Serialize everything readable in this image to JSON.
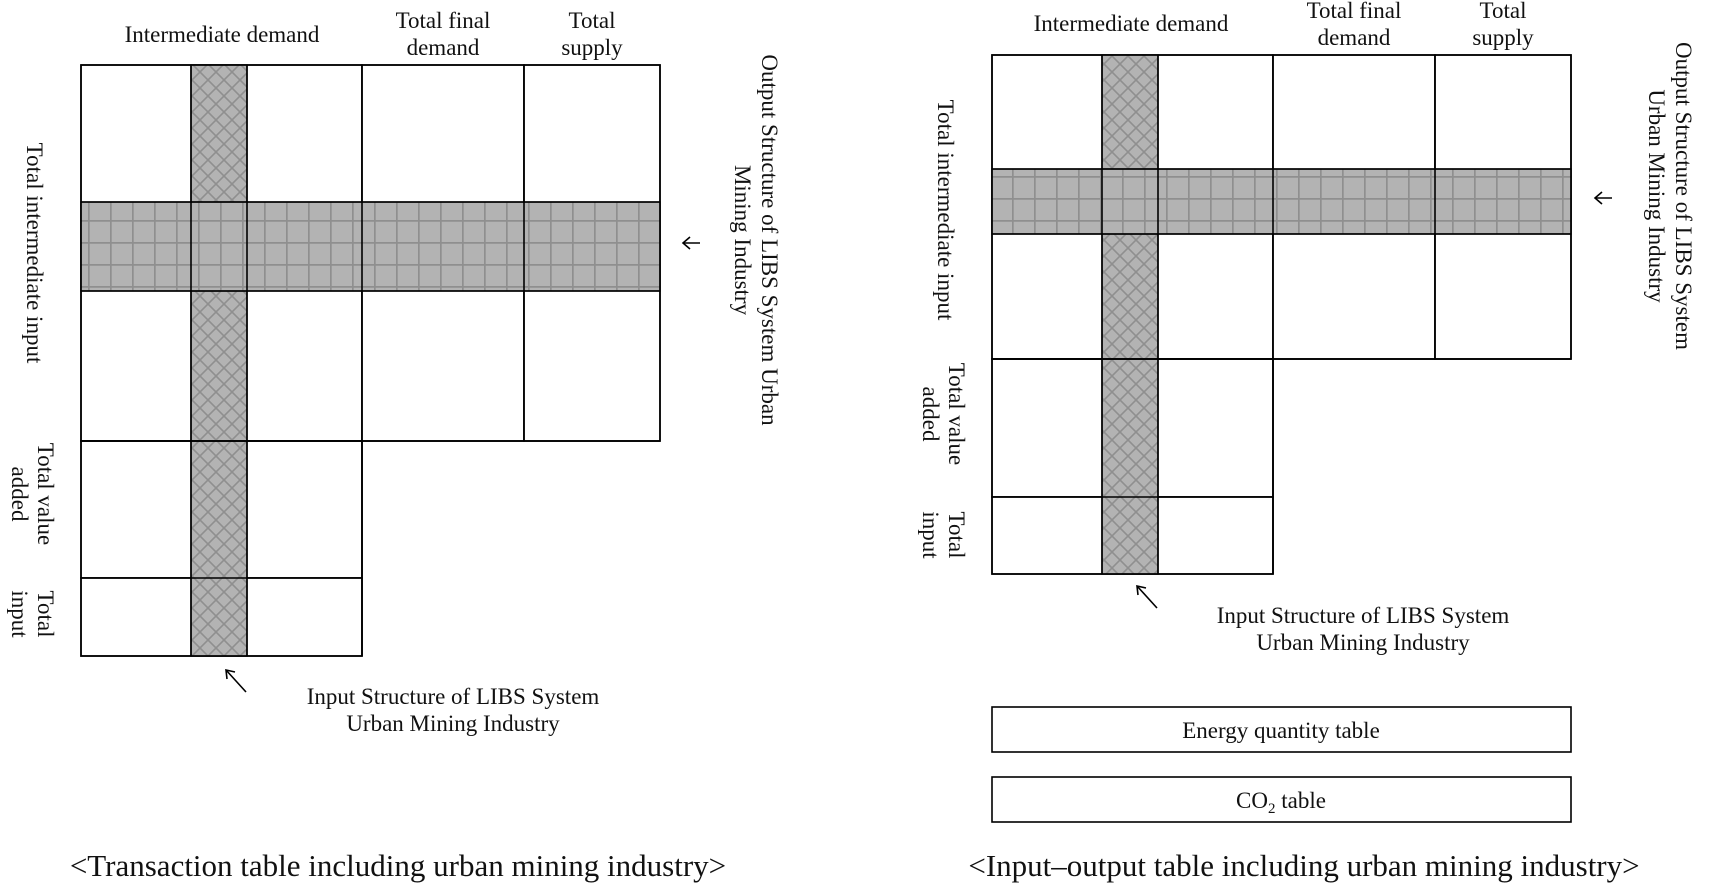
{
  "left_diagram": {
    "header_intermediate_demand": "Intermediate demand",
    "header_total_final_demand": [
      "Total final",
      "demand"
    ],
    "header_total_supply": [
      "Total",
      "supply"
    ],
    "row_total_intermediate_input": "Total intermediate input",
    "row_total_value_added": [
      "Total value",
      "added"
    ],
    "row_total_input": [
      "Total",
      "input"
    ],
    "output_structure_label": [
      "Output Structure of LIBS System Urban",
      "Mining Industry"
    ],
    "input_structure_label": [
      "Input Structure of LIBS System",
      "Urban Mining Industry"
    ],
    "caption": "<Transaction table including urban mining industry>"
  },
  "right_diagram": {
    "header_intermediate_demand": "Intermediate demand",
    "header_total_final_demand": [
      "Total final",
      "demand"
    ],
    "header_total_supply": [
      "Total",
      "supply"
    ],
    "row_total_intermediate_input": "Total intermediate input",
    "row_total_value_added": [
      "Total value",
      "added"
    ],
    "row_total_input": [
      "Total",
      "input"
    ],
    "output_structure_label": [
      "Output Structure of LIBS System",
      "Urban Mining Industry"
    ],
    "input_structure_label": [
      "Input Structure of LIBS System",
      "Urban Mining Industry"
    ],
    "energy_table_label": "Energy quantity table",
    "co2_table_label": "CO",
    "co2_subscript": "2",
    "co2_table_suffix": " table",
    "caption": "<Input–output table including urban mining industry>"
  },
  "colors": {
    "band_fill": "#b3b3b3",
    "band_pattern_line": "#8f8f8f",
    "line": "#000000",
    "background": "#ffffff"
  }
}
